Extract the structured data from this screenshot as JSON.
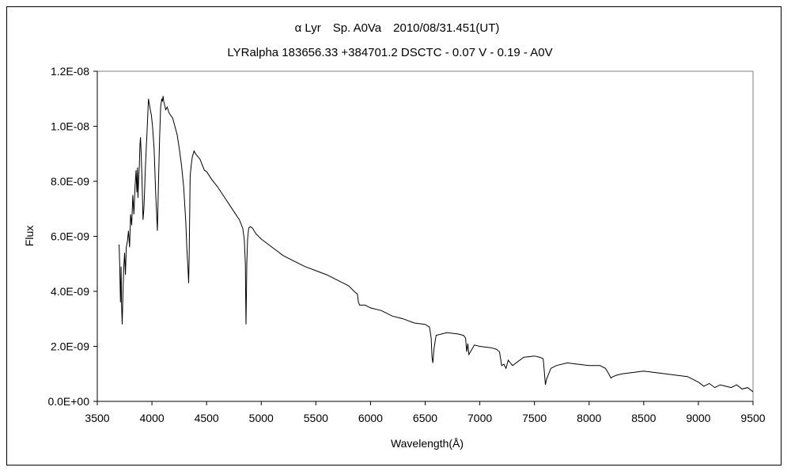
{
  "chart_data": {
    "type": "line",
    "title": "α Lyr　Sp. A0Va　2010/08/31.451(UT)",
    "subtitle": "LYRalpha 183656.33 +384701.2 DSCTC - 0.07 V - 0.19 - A0V",
    "xlabel": "Wavelength(Å)",
    "ylabel": "Flux",
    "xlim": [
      3500,
      9500
    ],
    "ylim": [
      0,
      1.2e-08
    ],
    "xticks": [
      3500,
      4000,
      4500,
      5000,
      5500,
      6000,
      6500,
      7000,
      7500,
      8000,
      8500,
      9000,
      9500
    ],
    "xtick_labels": [
      "3500",
      "4000",
      "4500",
      "5000",
      "5500",
      "6000",
      "6500",
      "7000",
      "7500",
      "8000",
      "8500",
      "9000",
      "9500"
    ],
    "yticks": [
      0,
      2e-09,
      4e-09,
      6e-09,
      8e-09,
      1e-08,
      1.2e-08
    ],
    "ytick_labels": [
      "0.0E+00",
      "2.0E-09",
      "4.0E-09",
      "6.0E-09",
      "8.0E-09",
      "1.0E-08",
      "1.2E-08"
    ],
    "grid": false,
    "legend": "none",
    "series": [
      {
        "color": "#000000",
        "x": [
          3700,
          3705,
          3712,
          3718,
          3722,
          3728,
          3735,
          3742,
          3750,
          3758,
          3765,
          3775,
          3785,
          3795,
          3805,
          3815,
          3825,
          3835,
          3845,
          3855,
          3862,
          3868,
          3872,
          3878,
          3885,
          3890,
          3895,
          3902,
          3910,
          3918,
          3926,
          3934,
          3940,
          3948,
          3955,
          3962,
          3968,
          3972,
          3977,
          3985,
          3995,
          4005,
          4020,
          4035,
          4050,
          4060,
          4070,
          4080,
          4090,
          4096,
          4102,
          4108,
          4115,
          4125,
          4140,
          4155,
          4170,
          4190,
          4210,
          4230,
          4250,
          4270,
          4290,
          4310,
          4320,
          4330,
          4336,
          4340,
          4345,
          4350,
          4360,
          4370,
          4385,
          4400,
          4420,
          4440,
          4460,
          4480,
          4500,
          4550,
          4600,
          4650,
          4700,
          4750,
          4800,
          4830,
          4845,
          4855,
          4858,
          4861,
          4864,
          4868,
          4875,
          4885,
          4900,
          4920,
          4950,
          5000,
          5100,
          5200,
          5300,
          5400,
          5500,
          5600,
          5700,
          5800,
          5850,
          5880,
          5890,
          5900,
          5950,
          6000,
          6100,
          6200,
          6300,
          6400,
          6500,
          6540,
          6555,
          6563,
          6570,
          6580,
          6600,
          6700,
          6800,
          6850,
          6870,
          6880,
          6890,
          6900,
          6950,
          7000,
          7100,
          7150,
          7180,
          7200,
          7220,
          7240,
          7260,
          7300,
          7400,
          7500,
          7550,
          7580,
          7590,
          7600,
          7610,
          7630,
          7650,
          7700,
          7800,
          7900,
          8000,
          8100,
          8150,
          8180,
          8200,
          8220,
          8250,
          8300,
          8400,
          8500,
          8600,
          8700,
          8800,
          8900,
          8950,
          9000,
          9050,
          9100,
          9150,
          9200,
          9250,
          9300,
          9350,
          9400,
          9450,
          9500
        ],
        "y": [
          5.7e-09,
          5e-09,
          3.6e-09,
          4.9e-09,
          3.5e-09,
          2.8e-09,
          4e-09,
          4.8e-09,
          5.4e-09,
          4.6e-09,
          5.6e-09,
          5.8e-09,
          6.2e-09,
          5.6e-09,
          6.8e-09,
          6.4e-09,
          7.5e-09,
          6.8e-09,
          7.8e-09,
          8.4e-09,
          7.6e-09,
          8.5e-09,
          7.4e-09,
          8e-09,
          8.6e-09,
          9.3e-09,
          9.6e-09,
          9e-09,
          8e-09,
          6.6e-09,
          7e-09,
          7.8e-09,
          8.5e-09,
          9.2e-09,
          9.8e-09,
          1.04e-08,
          1.1e-08,
          1.09e-08,
          1.08e-08,
          1.06e-08,
          1.04e-08,
          1e-08,
          9.2e-09,
          7.5e-09,
          6.2e-09,
          8e-09,
          9.6e-09,
          1.07e-08,
          1.1e-08,
          1.09e-08,
          1.11e-08,
          1.09e-08,
          1.08e-08,
          1.06e-08,
          1.07e-08,
          1.05e-08,
          1.04e-08,
          1.03e-08,
          1e-08,
          9.7e-09,
          9.2e-09,
          8.6e-09,
          7.8e-09,
          6.5e-09,
          5.5e-09,
          4.8e-09,
          4.3e-09,
          5.2e-09,
          6.8e-09,
          8.2e-09,
          8.6e-09,
          8.9e-09,
          9.1e-09,
          9e-09,
          8.9e-09,
          8.8e-09,
          8.6e-09,
          8.4e-09,
          8.35e-09,
          8.05e-09,
          7.8e-09,
          7.5e-09,
          7.2e-09,
          6.9e-09,
          6.6e-09,
          6.3e-09,
          5.9e-09,
          5e-09,
          3.8e-09,
          2.8e-09,
          3.8e-09,
          5e-09,
          5.9e-09,
          6.3e-09,
          6.35e-09,
          6.3e-09,
          6.1e-09,
          5.9e-09,
          5.6e-09,
          5.3e-09,
          5.1e-09,
          4.9e-09,
          4.75e-09,
          4.6e-09,
          4.4e-09,
          4.2e-09,
          4e-09,
          3.9e-09,
          3.6e-09,
          3.5e-09,
          3.5e-09,
          3.4e-09,
          3.3e-09,
          3.1e-09,
          3e-09,
          2.85e-09,
          2.8e-09,
          2.7e-09,
          2.3e-09,
          1.6e-09,
          1.4e-09,
          1.9e-09,
          2.4e-09,
          2.5e-09,
          2.45e-09,
          2.4e-09,
          2.3e-09,
          1.8e-09,
          2.1e-09,
          1.7e-09,
          2.05e-09,
          2e-09,
          1.95e-09,
          1.9e-09,
          1.8e-09,
          1.3e-09,
          1.35e-09,
          1.2e-09,
          1.5e-09,
          1.3e-09,
          1.6e-09,
          1.65e-09,
          1.6e-09,
          1.55e-09,
          1.1e-09,
          6e-10,
          8e-10,
          1e-09,
          1.2e-09,
          1.3e-09,
          1.4e-09,
          1.35e-09,
          1.3e-09,
          1.3e-09,
          1.2e-09,
          1e-09,
          8.5e-10,
          9e-10,
          9.5e-10,
          1e-09,
          1.05e-09,
          1.1e-09,
          1.05e-09,
          1e-09,
          9.5e-10,
          9e-10,
          8e-10,
          7e-10,
          5.5e-10,
          6.5e-10,
          5e-10,
          6e-10,
          5.5e-10,
          5e-10,
          6e-10,
          4.5e-10,
          5e-10,
          3.5e-10
        ]
      }
    ]
  }
}
